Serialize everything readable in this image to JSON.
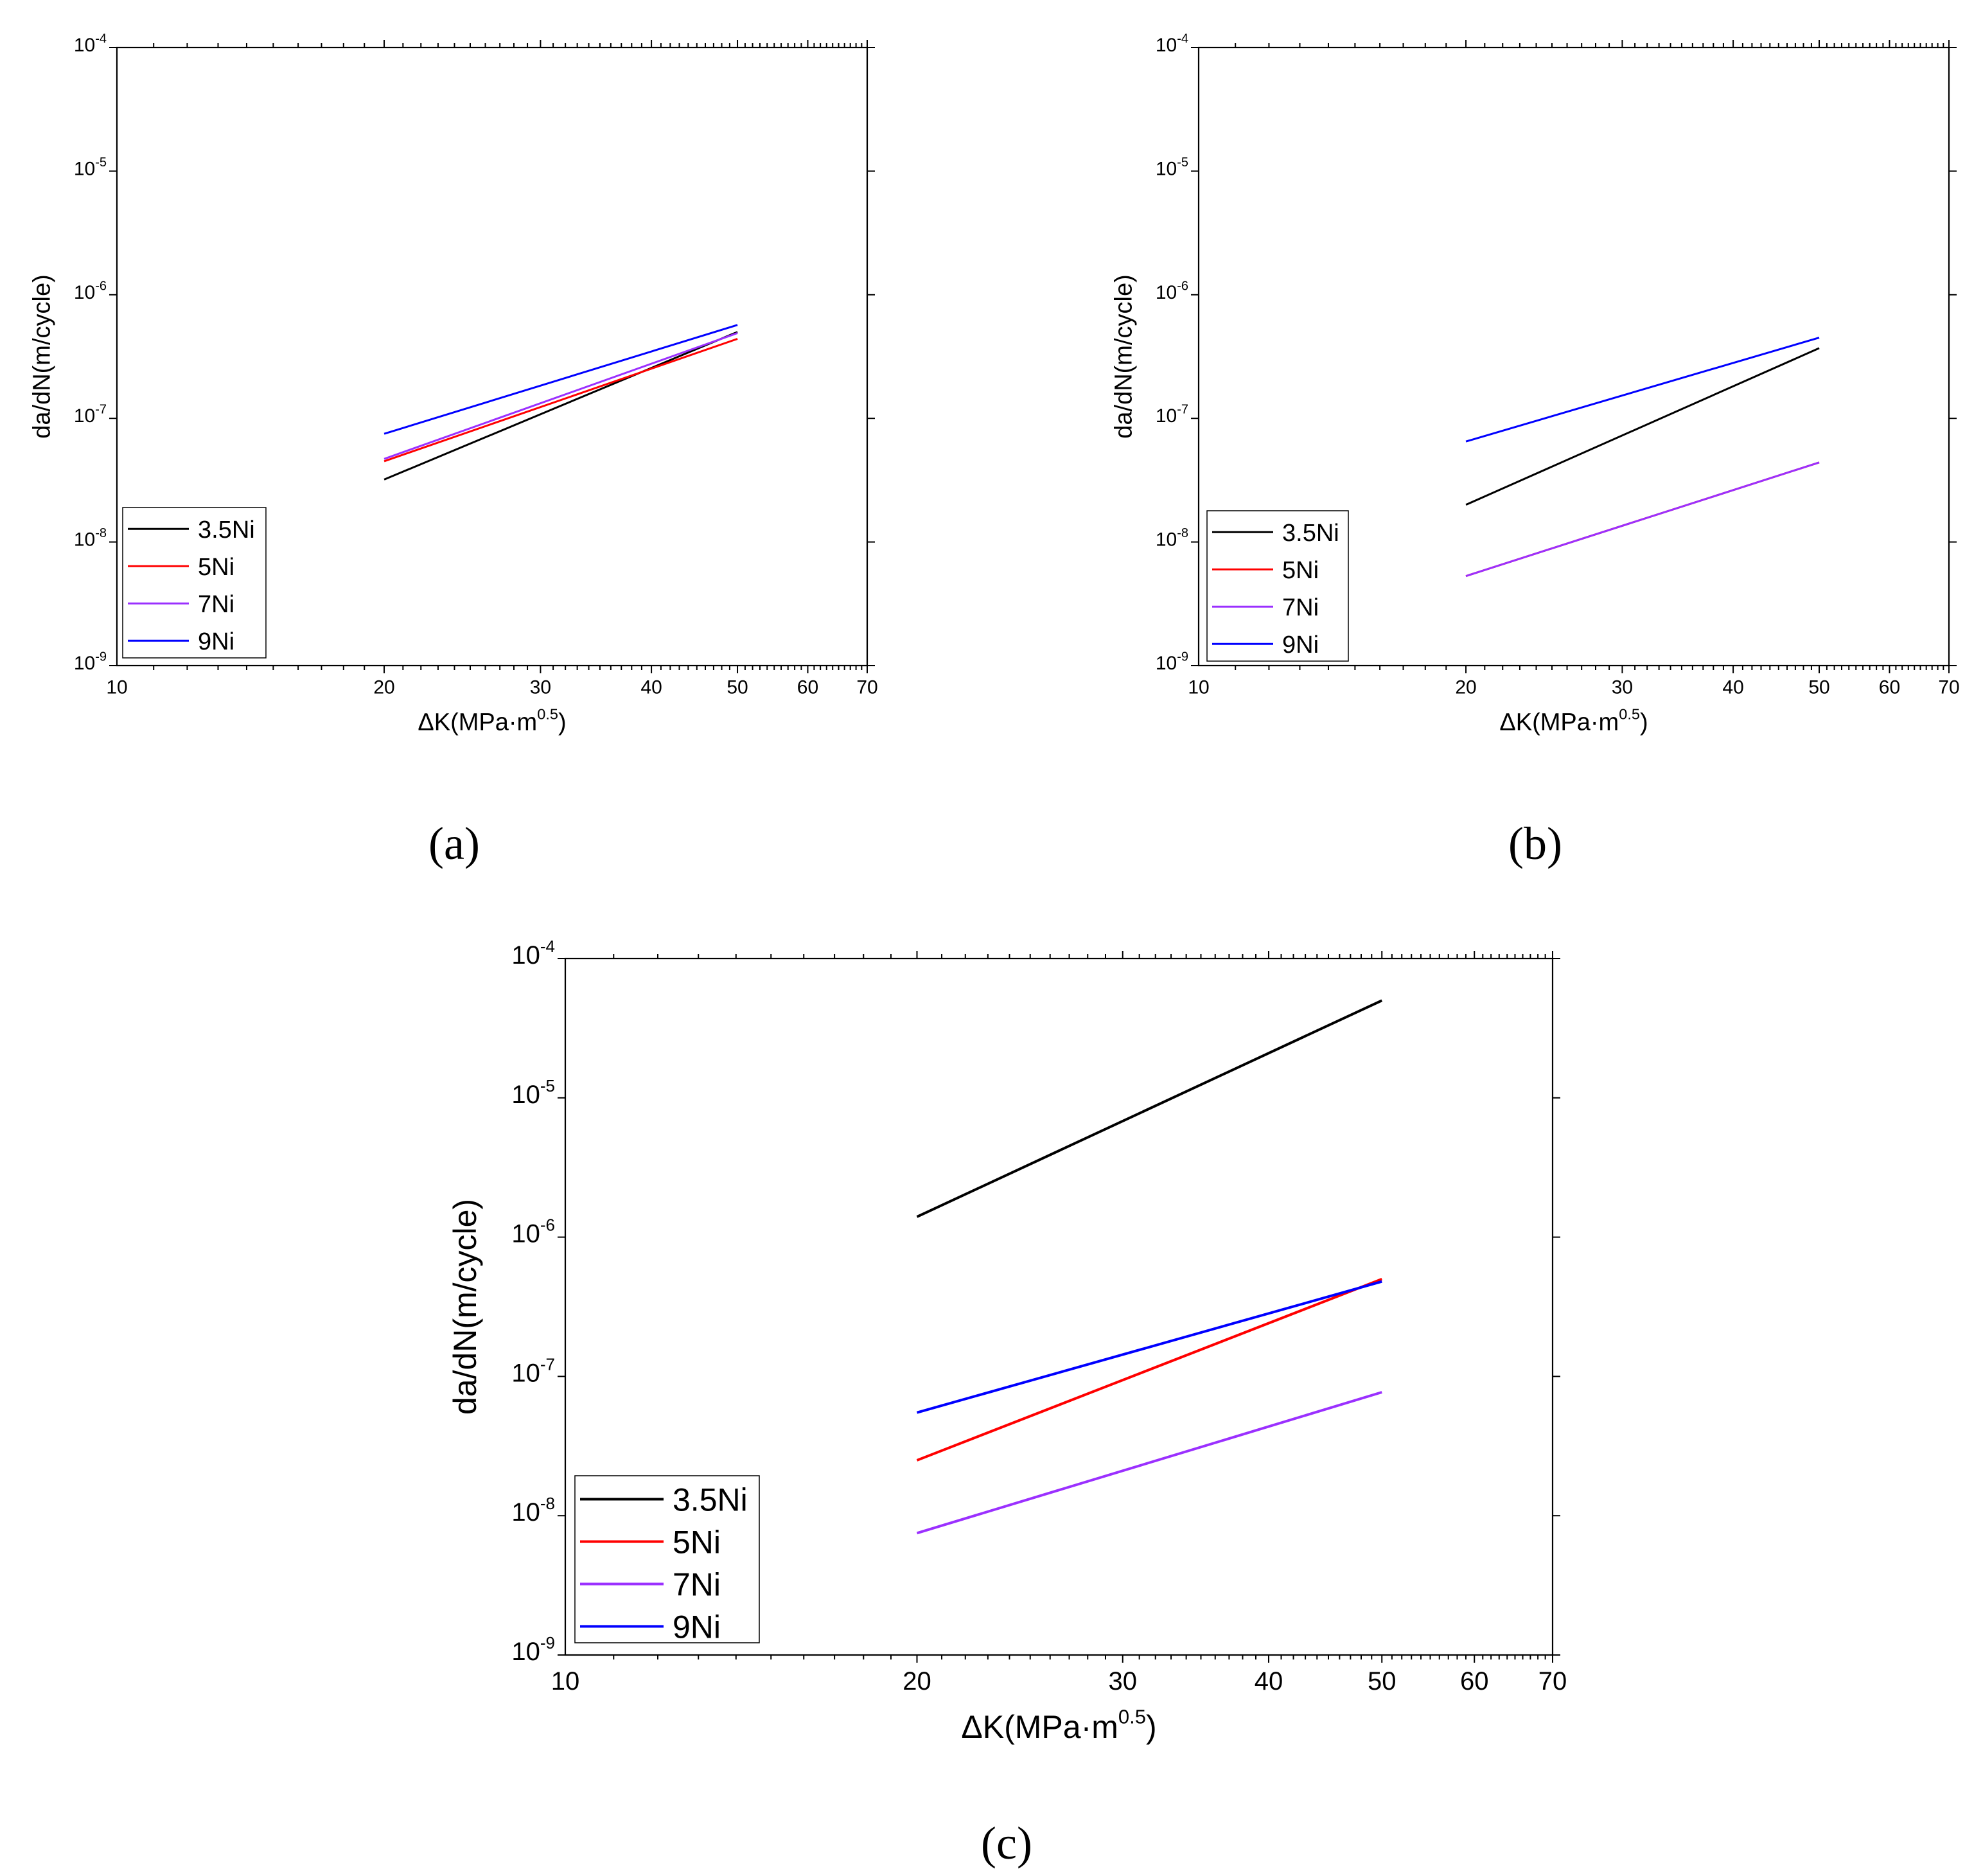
{
  "figure": {
    "captions": [
      "(a)",
      "(b)",
      "(c)"
    ]
  },
  "chart_data": [
    {
      "panel": "a",
      "type": "line",
      "xscale": "log",
      "yscale": "log",
      "xlim": [
        10,
        70
      ],
      "ylim": [
        1e-09,
        0.0001
      ],
      "xticks": [
        10,
        20,
        30,
        40,
        50,
        60,
        70
      ],
      "xlabel": "ΔK(MPa·m",
      "xlabel_sup": "0.5",
      "xlabel_end": ")",
      "ylabel": "da/dN(m/cycle)",
      "legend_position": "bottom-left",
      "series": [
        {
          "name": "3.5Ni",
          "color": "#000000",
          "x": [
            20,
            50
          ],
          "y": [
            3.2e-08,
            5e-07
          ]
        },
        {
          "name": "5Ni",
          "color": "#ff0000",
          "x": [
            20,
            50
          ],
          "y": [
            4.5e-08,
            4.4e-07
          ]
        },
        {
          "name": "7Ni",
          "color": "#9b30ff",
          "x": [
            20,
            50
          ],
          "y": [
            4.7e-08,
            4.9e-07
          ]
        },
        {
          "name": "9Ni",
          "color": "#0000ff",
          "x": [
            20,
            50
          ],
          "y": [
            7.5e-08,
            5.7e-07
          ]
        }
      ]
    },
    {
      "panel": "b",
      "type": "line",
      "xscale": "log",
      "yscale": "log",
      "xlim": [
        10,
        70
      ],
      "ylim": [
        1e-09,
        0.0001
      ],
      "xticks": [
        10,
        20,
        30,
        40,
        50,
        60,
        70
      ],
      "xlabel": "ΔK(MPa·m",
      "xlabel_sup": "0.5",
      "xlabel_end": ")",
      "ylabel": "da/dN(m/cycle)",
      "legend_position": "bottom-left",
      "series": [
        {
          "name": "3.5Ni",
          "color": "#000000",
          "x": [
            20,
            50
          ],
          "y": [
            2e-08,
            3.7e-07
          ]
        },
        {
          "name": "5Ni",
          "color": "#ff0000",
          "x": [
            20,
            50
          ],
          "y": [
            5.3e-09,
            4.4e-08
          ]
        },
        {
          "name": "7Ni",
          "color": "#9b30ff",
          "x": [
            20,
            50
          ],
          "y": [
            5.3e-09,
            4.4e-08
          ]
        },
        {
          "name": "9Ni",
          "color": "#0000ff",
          "x": [
            20,
            50
          ],
          "y": [
            6.5e-08,
            4.5e-07
          ]
        }
      ]
    },
    {
      "panel": "c",
      "type": "line",
      "xscale": "log",
      "yscale": "log",
      "xlim": [
        10,
        70
      ],
      "ylim": [
        1e-09,
        0.0001
      ],
      "xticks": [
        10,
        20,
        30,
        40,
        50,
        60,
        70
      ],
      "xlabel": "ΔK(MPa·m",
      "xlabel_sup": "0.5",
      "xlabel_end": ")",
      "ylabel": "da/dN(m/cycle)",
      "legend_position": "bottom-left",
      "series": [
        {
          "name": "3.5Ni",
          "color": "#000000",
          "x": [
            20,
            50
          ],
          "y": [
            1.4e-06,
            5e-05
          ]
        },
        {
          "name": "5Ni",
          "color": "#ff0000",
          "x": [
            20,
            50
          ],
          "y": [
            2.5e-08,
            5e-07
          ]
        },
        {
          "name": "7Ni",
          "color": "#9b30ff",
          "x": [
            20,
            50
          ],
          "y": [
            7.5e-09,
            7.7e-08
          ]
        },
        {
          "name": "9Ni",
          "color": "#0000ff",
          "x": [
            20,
            50
          ],
          "y": [
            5.5e-08,
            4.8e-07
          ]
        }
      ]
    }
  ]
}
